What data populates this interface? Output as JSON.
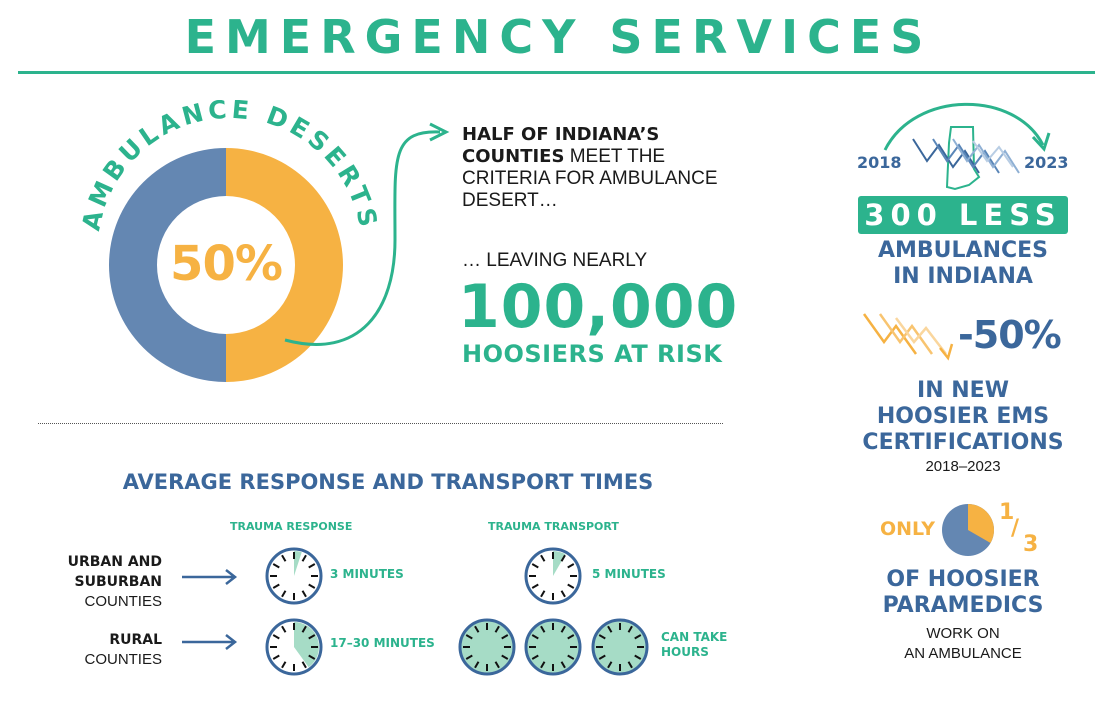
{
  "title": "EMERGENCY SERVICES",
  "ambulance_deserts": {
    "arc_label": "AMBULANCE DESERTS",
    "percent_label": "50%",
    "percent_value": 50,
    "colors": {
      "filled": "#f6b243",
      "rest": "#6487b2"
    }
  },
  "half_counties": {
    "bold": "HALF OF INDIANA’S COUNTIES",
    "rest": " MEET THE CRITERIA FOR AMBULANCE DESERT…"
  },
  "at_risk": {
    "leaving": "… LEAVING NEARLY",
    "number": "100,000",
    "label": "HOOSIERS AT RISK"
  },
  "response": {
    "title": "AVERAGE RESPONSE AND TRANSPORT TIMES",
    "col_response": "TRAUMA RESPONSE",
    "col_transport": "TRAUMA TRANSPORT",
    "rows": [
      {
        "bold": "URBAN AND SUBURBAN",
        "plain": "COUNTIES",
        "response_time": "3 MINUTES",
        "transport_time": "5 MINUTES"
      },
      {
        "bold": "RURAL",
        "plain": "COUNTIES",
        "response_time": "17–30 MINUTES",
        "transport_time": "CAN TAKE HOURS"
      }
    ]
  },
  "ambulances": {
    "year_start": "2018",
    "year_end": "2023",
    "less": "300 LESS",
    "label_line1": "AMBULANCES",
    "label_line2": "IN INDIANA"
  },
  "certifications": {
    "change": "-50%",
    "line1": "IN NEW",
    "line2": "HOOSIER EMS",
    "line3": "CERTIFICATIONS",
    "years": "2018–2023"
  },
  "paramedics": {
    "only": "ONLY",
    "numerator": "1",
    "slash": "/",
    "denominator": "3",
    "fraction_value": 0.333,
    "line1": "OF HOOSIER",
    "line2": "PARAMEDICS",
    "line3": "WORK ON",
    "line4": "AN AMBULANCE"
  },
  "colors": {
    "teal": "#2cb38d",
    "blue": "#3b679b",
    "orange": "#f6b243",
    "donut_blue": "#6487b2",
    "clock_fill": "#a6dcc6"
  }
}
